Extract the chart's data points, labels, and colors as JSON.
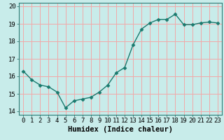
{
  "x": [
    0,
    1,
    2,
    3,
    4,
    5,
    6,
    7,
    8,
    9,
    10,
    11,
    12,
    13,
    14,
    15,
    16,
    17,
    18,
    19,
    20,
    21,
    22,
    23
  ],
  "y": [
    16.3,
    15.8,
    15.5,
    15.4,
    15.1,
    14.2,
    14.6,
    14.7,
    14.8,
    15.1,
    15.5,
    16.2,
    16.5,
    17.8,
    18.7,
    19.05,
    19.25,
    19.25,
    19.55,
    18.95,
    18.95,
    19.05,
    19.1,
    19.05
  ],
  "xlim": [
    -0.5,
    23.5
  ],
  "ylim": [
    13.8,
    20.2
  ],
  "yticks": [
    14,
    15,
    16,
    17,
    18,
    19,
    20
  ],
  "xticks": [
    0,
    1,
    2,
    3,
    4,
    5,
    6,
    7,
    8,
    9,
    10,
    11,
    12,
    13,
    14,
    15,
    16,
    17,
    18,
    19,
    20,
    21,
    22,
    23
  ],
  "xlabel": "Humidex (Indice chaleur)",
  "line_color": "#1a7a6e",
  "bg_color": "#c8ecea",
  "plot_bg_color": "#c8ecea",
  "grid_color": "#f2a8a8",
  "marker": "D",
  "marker_size": 2.5,
  "linewidth": 1.0,
  "xlabel_fontsize": 7.5,
  "tick_fontsize": 6.5
}
